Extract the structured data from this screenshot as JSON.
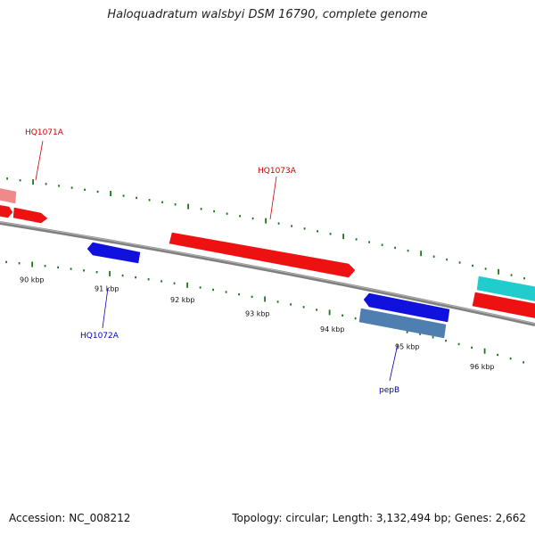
{
  "title": "Haloquadratum walsbyi DSM 16790, complete genome",
  "footer": {
    "accession": "Accession: NC_008212",
    "summary": "Topology: circular; Length: 3,132,494 bp; Genes: 2,662"
  },
  "colors": {
    "backbone": "#808080",
    "ticks": "#1a7a1a",
    "forward_gene": "#ee1111",
    "forward_gene_light": "#f08a8a",
    "reverse_gene": "#1111dd",
    "reverse_gene_steel": "#4f7fb0",
    "cyan_gene": "#22cccc",
    "forward_label": "#cc0000",
    "reverse_label": "#0000bb"
  },
  "scale": {
    "tick_labels": [
      "90 kbp",
      "91 kbp",
      "92 kbp",
      "93 kbp",
      "94 kbp",
      "95 kbp",
      "96 kbp"
    ]
  },
  "genes": [
    {
      "name": "",
      "strand": "forward",
      "color": "forward_gene_light"
    },
    {
      "name": "HQ1071A",
      "strand": "forward",
      "color": "forward_gene"
    },
    {
      "name": "",
      "strand": "forward",
      "color": "forward_gene"
    },
    {
      "name": "HQ1073A",
      "strand": "forward",
      "color": "forward_gene"
    },
    {
      "name": "",
      "strand": "forward",
      "color": "cyan_gene"
    },
    {
      "name": "",
      "strand": "forward",
      "color": "forward_gene"
    },
    {
      "name": "HQ1072A",
      "strand": "reverse",
      "color": "reverse_gene"
    },
    {
      "name": "pepB",
      "strand": "reverse",
      "color": "reverse_gene"
    },
    {
      "name": "",
      "strand": "reverse",
      "color": "reverse_gene_steel"
    }
  ]
}
